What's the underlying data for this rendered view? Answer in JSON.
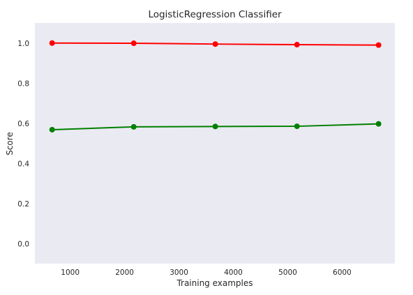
{
  "chart_data": {
    "type": "line",
    "title": "LogisticRegression Classifier",
    "xlabel": "Training examples",
    "ylabel": "Score",
    "x": [
      667,
      2168,
      3668,
      5170,
      6670
    ],
    "series": [
      {
        "color": "#ff0000",
        "values": [
          1.0,
          0.999,
          0.995,
          0.992,
          0.99
        ]
      },
      {
        "color": "#008000",
        "values": [
          0.568,
          0.582,
          0.584,
          0.585,
          0.597
        ]
      }
    ],
    "xticks": [
      "1000",
      "2000",
      "3000",
      "4000",
      "5000",
      "6000"
    ],
    "yticks": [
      "0.0",
      "0.2",
      "0.4",
      "0.6",
      "0.8",
      "1.0"
    ],
    "xlim": [
      350,
      6970
    ],
    "ylim": [
      -0.1,
      1.1
    ],
    "grid": false,
    "background": "#eaeaf2"
  }
}
